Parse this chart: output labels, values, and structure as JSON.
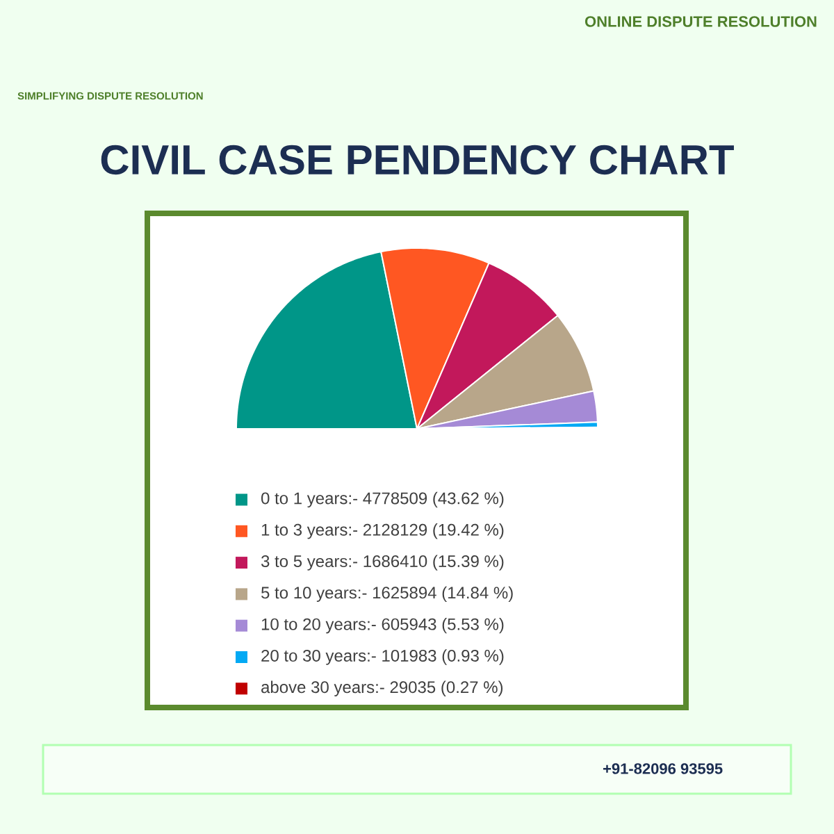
{
  "chart_data": {
    "type": "pie",
    "title": "CIVIL CASE PENDENCY CHART",
    "categories": [
      "0 to 1 years:- 4778509 (43.62 %)",
      "1 to 3 years:- 2128129 (19.42 %)",
      "3 to 5 years:- 1686410 (15.39 %)",
      "5 to 10 years:- 1625894 (14.84 %)",
      "10 to 20 years:- 605943 (5.53 %)",
      "20 to 30 years:- 101983 (0.93 %)",
      "above 30 years:- 29035 (0.27 %)"
    ],
    "values": [
      43.62,
      19.42,
      15.39,
      14.84,
      5.53,
      0.93,
      0.27
    ],
    "colors": [
      "#009688",
      "#ff5722",
      "#c2185b",
      "#b8a68a",
      "#a58ad6",
      "#03a9f4",
      "#c00000"
    ],
    "legend": "bottom",
    "annotations": [
      "ONLINE DISPUTE RESOLUTION",
      "SIMPLIFYING DISPUTE RESOLUTION",
      "+91-82096 93595"
    ]
  }
}
